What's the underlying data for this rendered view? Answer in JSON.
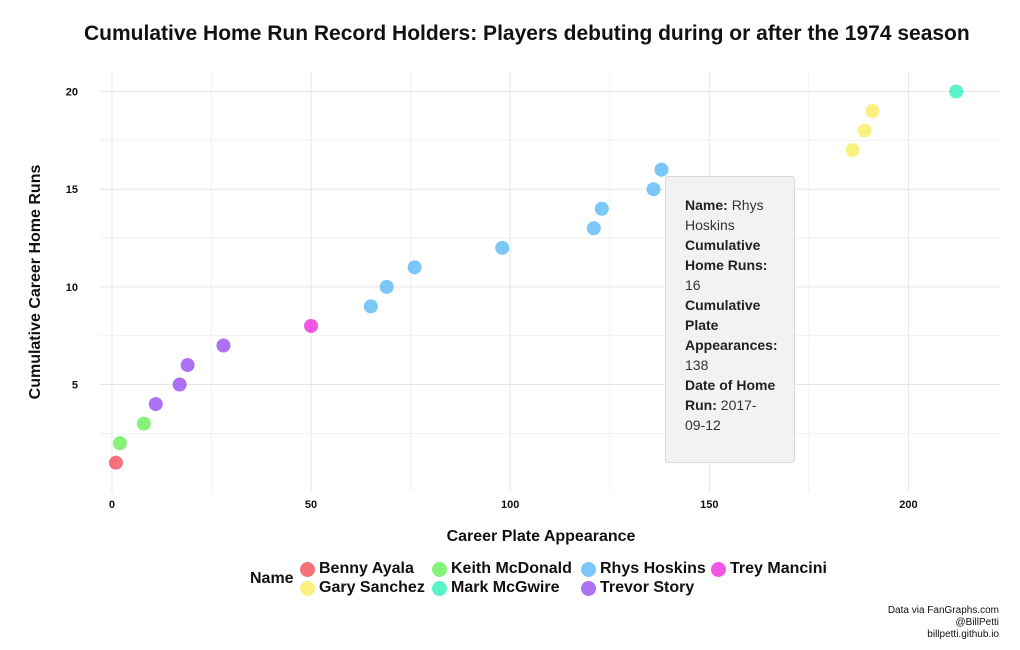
{
  "title": "Cumulative Home Run Record Holders: Players debuting during or after the 1974 season",
  "chart_data": {
    "type": "scatter",
    "title": "Cumulative Home Run Record Holders: Players debuting during or after the 1974 season",
    "xlabel": "Career Plate Appearance",
    "ylabel": "Cumulative Career Home Runs",
    "xlim": [
      -3,
      223
    ],
    "ylim": [
      -0.5,
      21
    ],
    "x_ticks": [
      0,
      50,
      100,
      150,
      200
    ],
    "y_ticks": [
      5,
      10,
      15,
      20
    ],
    "grid": true,
    "legend_title": "Name",
    "legend_position": "bottom",
    "series": [
      {
        "name": "Benny Ayala",
        "color": "#f0434c",
        "points": [
          {
            "x": 1,
            "y": 1
          }
        ]
      },
      {
        "name": "Keith McDonald",
        "color": "#5fed4c",
        "points": [
          {
            "x": 2,
            "y": 2
          },
          {
            "x": 8,
            "y": 3
          }
        ]
      },
      {
        "name": "Trevor Story",
        "color": "#9142ef",
        "points": [
          {
            "x": 11,
            "y": 4
          },
          {
            "x": 17,
            "y": 5
          },
          {
            "x": 19,
            "y": 6
          },
          {
            "x": 28,
            "y": 7
          }
        ]
      },
      {
        "name": "Trey Mancini",
        "color": "#ec1fdc",
        "points": [
          {
            "x": 50,
            "y": 8
          }
        ]
      },
      {
        "name": "Rhys Hoskins",
        "color": "#4fb4f6",
        "points": [
          {
            "x": 65,
            "y": 9
          },
          {
            "x": 69,
            "y": 10
          },
          {
            "x": 76,
            "y": 11
          },
          {
            "x": 98,
            "y": 12
          },
          {
            "x": 121,
            "y": 13
          },
          {
            "x": 123,
            "y": 14
          },
          {
            "x": 136,
            "y": 15
          },
          {
            "x": 138,
            "y": 16
          }
        ]
      },
      {
        "name": "Gary Sanchez",
        "color": "#f7ec55",
        "points": [
          {
            "x": 186,
            "y": 17
          },
          {
            "x": 189,
            "y": 18
          },
          {
            "x": 191,
            "y": 19
          }
        ]
      },
      {
        "name": "Mark McGwire",
        "color": "#23f0b8",
        "points": [
          {
            "x": 212,
            "y": 20
          }
        ]
      }
    ]
  },
  "legend": {
    "title": "Name",
    "items": [
      {
        "label": "Benny Ayala",
        "color": "#f0434c"
      },
      {
        "label": "Keith McDonald",
        "color": "#5fed4c"
      },
      {
        "label": "Rhys Hoskins",
        "color": "#4fb4f6"
      },
      {
        "label": "Trey Mancini",
        "color": "#ec1fdc"
      },
      {
        "label": "Gary Sanchez",
        "color": "#f7ec55"
      },
      {
        "label": "Mark McGwire",
        "color": "#23f0b8"
      },
      {
        "label": "Trevor Story",
        "color": "#9142ef"
      }
    ]
  },
  "tooltip": {
    "name_label": "Name:",
    "name_value": "Rhys Hoskins",
    "hr_label": "Cumulative Home Runs:",
    "hr_value": "16",
    "pa_label": "Cumulative Plate Appearances:",
    "pa_value": "138",
    "date_label": "Date of Home Run:",
    "date_value": "2017-09-12"
  },
  "credits": {
    "line1": "Data via FanGraphs.com",
    "line2": "@BillPetti",
    "line3": "billpetti.github.io"
  }
}
